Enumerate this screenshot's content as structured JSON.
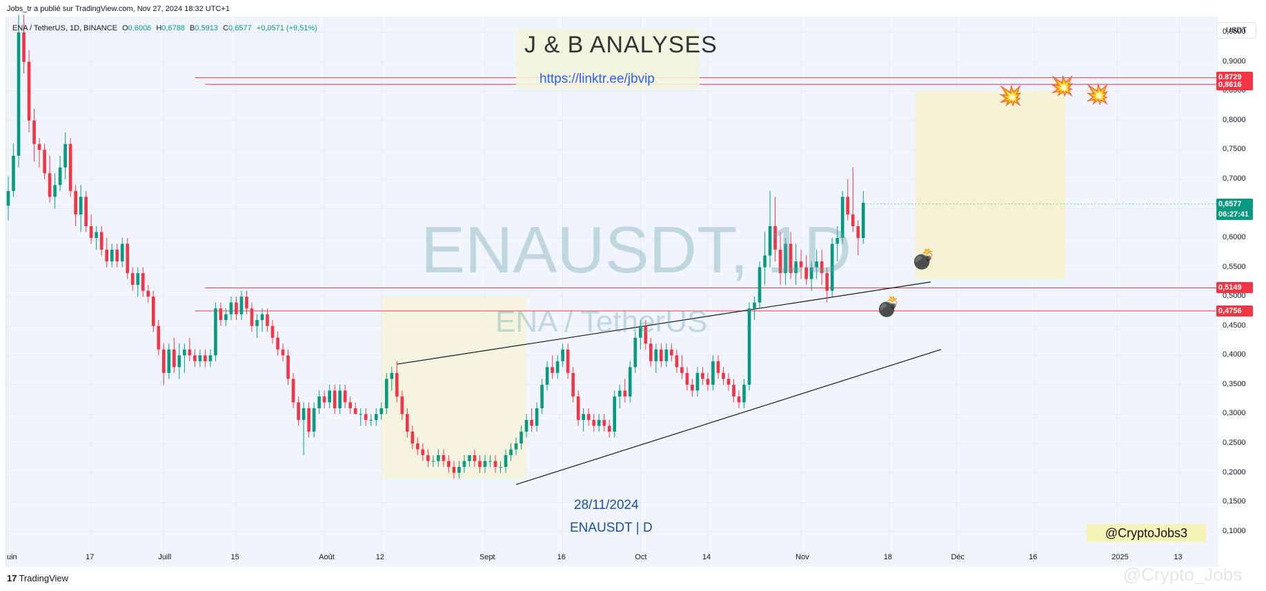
{
  "header": {
    "credit": "Jobs_tr a publié sur TradingView.com, Nov 27, 2024 18:32 UTC+1"
  },
  "ohlc": {
    "symbol": "ENA / TetherUS, 1D, BINANCE",
    "o_label": "O",
    "o": "0,6006",
    "h_label": "H",
    "h": "0,6788",
    "l_label": "B",
    "l": "0,5913",
    "c_label": "C",
    "c": "0,6577",
    "change": "+0,0571 (+9,51%)"
  },
  "watermark": {
    "main": "ENAUSDT, 1D",
    "sub": "ENA / TetherUS"
  },
  "annotations": {
    "title": "J & B ANALYSES",
    "link": "https://linktr.ee/jbvip",
    "date": "28/11/2024",
    "pair": "ENAUSDT | D",
    "handle": "@CryptoJobs3"
  },
  "price_axis": {
    "unit_button": "USDT",
    "ticks": [
      "0,9500",
      "0,9000",
      "0,8500",
      "0,8000",
      "0,7500",
      "0,7000",
      "0,6500",
      "0,6000",
      "0,5500",
      "0,5000",
      "0,4500",
      "0,4000",
      "0,3500",
      "0,3000",
      "0,2500",
      "0,2000",
      "0,1500",
      "0,1000"
    ],
    "labels": [
      {
        "text": "0,8729",
        "color": "#f23645"
      },
      {
        "text": "0,8616",
        "color": "#f23645"
      },
      {
        "text": "0,5149",
        "color": "#f23645"
      },
      {
        "text": "0,4756",
        "color": "#f23645"
      },
      {
        "text": "0,6577",
        "color": "#089981"
      },
      {
        "text": "06:27:41",
        "color": "#089981"
      }
    ]
  },
  "time_axis": [
    "uin",
    "17",
    "Juill",
    "15",
    "Août",
    "12",
    "Sept",
    "16",
    "Oct",
    "14",
    "Nov",
    "18",
    "Déc",
    "16",
    "2025",
    "13"
  ],
  "footer": {
    "logo": "TradingView",
    "logo_mark": "17",
    "watermark": "@Crypto_Jobs"
  },
  "icons": {
    "explosion": "explosion-icon",
    "bomb": "bomb-icon"
  },
  "colors": {
    "up": "#089981",
    "down": "#f23645",
    "hline": "#f23645",
    "bg": "#f1f5ff",
    "zone": "#f6f3c8"
  },
  "chart_data": {
    "type": "candlestick",
    "title": "ENAUSDT, 1D",
    "xlabel": "",
    "ylabel": "",
    "ylim": [
      0.075,
      0.97
    ],
    "grid": true,
    "start_date": "2024-06-01",
    "end_date": "2025-01-20",
    "hlines": [
      0.8729,
      0.8616,
      0.5149,
      0.4756
    ],
    "last": 0.6577,
    "candles": [
      [
        0.655,
        0.705,
        0.63,
        0.68
      ],
      [
        0.68,
        0.76,
        0.67,
        0.74
      ],
      [
        0.74,
        0.98,
        0.72,
        0.95
      ],
      [
        0.95,
        0.98,
        0.88,
        0.9
      ],
      [
        0.9,
        0.92,
        0.78,
        0.8
      ],
      [
        0.8,
        0.82,
        0.73,
        0.76
      ],
      [
        0.76,
        0.77,
        0.72,
        0.75
      ],
      [
        0.75,
        0.76,
        0.7,
        0.71
      ],
      [
        0.71,
        0.74,
        0.66,
        0.67
      ],
      [
        0.67,
        0.71,
        0.65,
        0.69
      ],
      [
        0.69,
        0.74,
        0.68,
        0.72
      ],
      [
        0.72,
        0.78,
        0.7,
        0.76
      ],
      [
        0.76,
        0.77,
        0.67,
        0.68
      ],
      [
        0.68,
        0.69,
        0.62,
        0.64
      ],
      [
        0.64,
        0.69,
        0.61,
        0.67
      ],
      [
        0.67,
        0.68,
        0.61,
        0.62
      ],
      [
        0.62,
        0.64,
        0.59,
        0.6
      ],
      [
        0.6,
        0.62,
        0.58,
        0.61
      ],
      [
        0.61,
        0.62,
        0.57,
        0.58
      ],
      [
        0.58,
        0.6,
        0.55,
        0.56
      ],
      [
        0.56,
        0.59,
        0.55,
        0.58
      ],
      [
        0.58,
        0.59,
        0.55,
        0.56
      ],
      [
        0.56,
        0.6,
        0.55,
        0.59
      ],
      [
        0.59,
        0.6,
        0.53,
        0.54
      ],
      [
        0.54,
        0.55,
        0.51,
        0.52
      ],
      [
        0.52,
        0.55,
        0.5,
        0.54
      ],
      [
        0.54,
        0.55,
        0.5,
        0.51
      ],
      [
        0.51,
        0.52,
        0.49,
        0.5
      ],
      [
        0.5,
        0.51,
        0.44,
        0.45
      ],
      [
        0.45,
        0.46,
        0.4,
        0.41
      ],
      [
        0.41,
        0.42,
        0.35,
        0.37
      ],
      [
        0.37,
        0.42,
        0.36,
        0.41
      ],
      [
        0.41,
        0.43,
        0.37,
        0.38
      ],
      [
        0.38,
        0.42,
        0.36,
        0.4
      ],
      [
        0.4,
        0.42,
        0.37,
        0.41
      ],
      [
        0.41,
        0.43,
        0.39,
        0.4
      ],
      [
        0.4,
        0.41,
        0.38,
        0.39
      ],
      [
        0.39,
        0.41,
        0.38,
        0.4
      ],
      [
        0.4,
        0.41,
        0.38,
        0.39
      ],
      [
        0.39,
        0.41,
        0.38,
        0.4
      ],
      [
        0.4,
        0.49,
        0.39,
        0.48
      ],
      [
        0.48,
        0.49,
        0.45,
        0.46
      ],
      [
        0.46,
        0.48,
        0.45,
        0.47
      ],
      [
        0.47,
        0.5,
        0.46,
        0.49
      ],
      [
        0.49,
        0.5,
        0.46,
        0.47
      ],
      [
        0.47,
        0.51,
        0.46,
        0.5
      ],
      [
        0.5,
        0.51,
        0.47,
        0.48
      ],
      [
        0.48,
        0.49,
        0.44,
        0.45
      ],
      [
        0.45,
        0.47,
        0.43,
        0.46
      ],
      [
        0.46,
        0.48,
        0.44,
        0.47
      ],
      [
        0.47,
        0.48,
        0.44,
        0.45
      ],
      [
        0.45,
        0.46,
        0.42,
        0.43
      ],
      [
        0.43,
        0.44,
        0.4,
        0.41
      ],
      [
        0.41,
        0.42,
        0.39,
        0.4
      ],
      [
        0.4,
        0.41,
        0.35,
        0.36
      ],
      [
        0.36,
        0.37,
        0.31,
        0.32
      ],
      [
        0.32,
        0.33,
        0.28,
        0.29
      ],
      [
        0.29,
        0.32,
        0.23,
        0.31
      ],
      [
        0.31,
        0.32,
        0.26,
        0.27
      ],
      [
        0.27,
        0.32,
        0.26,
        0.31
      ],
      [
        0.31,
        0.34,
        0.3,
        0.33
      ],
      [
        0.33,
        0.34,
        0.31,
        0.32
      ],
      [
        0.32,
        0.35,
        0.31,
        0.34
      ],
      [
        0.34,
        0.35,
        0.3,
        0.31
      ],
      [
        0.31,
        0.35,
        0.3,
        0.34
      ],
      [
        0.34,
        0.35,
        0.31,
        0.32
      ],
      [
        0.32,
        0.33,
        0.3,
        0.31
      ],
      [
        0.31,
        0.32,
        0.3,
        0.3
      ],
      [
        0.3,
        0.31,
        0.28,
        0.3
      ],
      [
        0.3,
        0.31,
        0.28,
        0.29
      ],
      [
        0.29,
        0.3,
        0.28,
        0.29
      ],
      [
        0.29,
        0.31,
        0.28,
        0.3
      ],
      [
        0.3,
        0.32,
        0.29,
        0.31
      ],
      [
        0.31,
        0.37,
        0.3,
        0.36
      ],
      [
        0.36,
        0.38,
        0.34,
        0.37
      ],
      [
        0.37,
        0.39,
        0.32,
        0.33
      ],
      [
        0.33,
        0.34,
        0.29,
        0.3
      ],
      [
        0.3,
        0.31,
        0.26,
        0.27
      ],
      [
        0.27,
        0.28,
        0.24,
        0.25
      ],
      [
        0.25,
        0.26,
        0.23,
        0.24
      ],
      [
        0.24,
        0.25,
        0.22,
        0.23
      ],
      [
        0.23,
        0.24,
        0.21,
        0.22
      ],
      [
        0.22,
        0.23,
        0.21,
        0.22
      ],
      [
        0.22,
        0.24,
        0.21,
        0.23
      ],
      [
        0.23,
        0.24,
        0.21,
        0.22
      ],
      [
        0.22,
        0.23,
        0.2,
        0.21
      ],
      [
        0.21,
        0.22,
        0.19,
        0.2
      ],
      [
        0.2,
        0.22,
        0.19,
        0.21
      ],
      [
        0.21,
        0.23,
        0.2,
        0.22
      ],
      [
        0.22,
        0.23,
        0.21,
        0.23
      ],
      [
        0.23,
        0.24,
        0.21,
        0.22
      ],
      [
        0.22,
        0.23,
        0.2,
        0.21
      ],
      [
        0.21,
        0.23,
        0.2,
        0.22
      ],
      [
        0.22,
        0.23,
        0.21,
        0.22
      ],
      [
        0.22,
        0.23,
        0.2,
        0.21
      ],
      [
        0.21,
        0.22,
        0.2,
        0.21
      ],
      [
        0.21,
        0.24,
        0.2,
        0.23
      ],
      [
        0.23,
        0.25,
        0.22,
        0.24
      ],
      [
        0.24,
        0.26,
        0.23,
        0.25
      ],
      [
        0.25,
        0.28,
        0.24,
        0.27
      ],
      [
        0.27,
        0.3,
        0.26,
        0.29
      ],
      [
        0.29,
        0.31,
        0.27,
        0.28
      ],
      [
        0.28,
        0.32,
        0.27,
        0.31
      ],
      [
        0.31,
        0.36,
        0.3,
        0.35
      ],
      [
        0.35,
        0.39,
        0.34,
        0.38
      ],
      [
        0.38,
        0.4,
        0.36,
        0.37
      ],
      [
        0.37,
        0.4,
        0.36,
        0.39
      ],
      [
        0.39,
        0.42,
        0.38,
        0.41
      ],
      [
        0.41,
        0.42,
        0.36,
        0.37
      ],
      [
        0.37,
        0.38,
        0.32,
        0.33
      ],
      [
        0.33,
        0.34,
        0.28,
        0.29
      ],
      [
        0.29,
        0.31,
        0.27,
        0.3
      ],
      [
        0.3,
        0.31,
        0.28,
        0.29
      ],
      [
        0.29,
        0.3,
        0.27,
        0.28
      ],
      [
        0.28,
        0.3,
        0.27,
        0.29
      ],
      [
        0.29,
        0.3,
        0.27,
        0.28
      ],
      [
        0.28,
        0.29,
        0.26,
        0.27
      ],
      [
        0.27,
        0.34,
        0.26,
        0.33
      ],
      [
        0.33,
        0.35,
        0.31,
        0.34
      ],
      [
        0.34,
        0.36,
        0.32,
        0.33
      ],
      [
        0.33,
        0.39,
        0.32,
        0.38
      ],
      [
        0.38,
        0.44,
        0.37,
        0.43
      ],
      [
        0.43,
        0.46,
        0.41,
        0.45
      ],
      [
        0.45,
        0.46,
        0.41,
        0.42
      ],
      [
        0.42,
        0.43,
        0.38,
        0.39
      ],
      [
        0.39,
        0.42,
        0.37,
        0.41
      ],
      [
        0.41,
        0.42,
        0.38,
        0.39
      ],
      [
        0.39,
        0.42,
        0.38,
        0.41
      ],
      [
        0.41,
        0.42,
        0.39,
        0.4
      ],
      [
        0.4,
        0.41,
        0.37,
        0.38
      ],
      [
        0.38,
        0.4,
        0.36,
        0.37
      ],
      [
        0.37,
        0.38,
        0.34,
        0.35
      ],
      [
        0.35,
        0.36,
        0.33,
        0.34
      ],
      [
        0.34,
        0.38,
        0.33,
        0.37
      ],
      [
        0.37,
        0.38,
        0.35,
        0.36
      ],
      [
        0.36,
        0.37,
        0.34,
        0.35
      ],
      [
        0.35,
        0.4,
        0.34,
        0.39
      ],
      [
        0.39,
        0.4,
        0.36,
        0.37
      ],
      [
        0.37,
        0.38,
        0.35,
        0.36
      ],
      [
        0.36,
        0.37,
        0.34,
        0.35
      ],
      [
        0.35,
        0.36,
        0.32,
        0.33
      ],
      [
        0.33,
        0.34,
        0.31,
        0.32
      ],
      [
        0.32,
        0.36,
        0.31,
        0.35
      ],
      [
        0.35,
        0.49,
        0.34,
        0.48
      ],
      [
        0.48,
        0.5,
        0.46,
        0.49
      ],
      [
        0.49,
        0.56,
        0.48,
        0.55
      ],
      [
        0.55,
        0.61,
        0.52,
        0.57
      ],
      [
        0.57,
        0.68,
        0.55,
        0.62
      ],
      [
        0.62,
        0.67,
        0.56,
        0.58
      ],
      [
        0.58,
        0.61,
        0.52,
        0.54
      ],
      [
        0.54,
        0.6,
        0.52,
        0.59
      ],
      [
        0.59,
        0.61,
        0.53,
        0.54
      ],
      [
        0.54,
        0.59,
        0.52,
        0.56
      ],
      [
        0.56,
        0.58,
        0.53,
        0.55
      ],
      [
        0.55,
        0.57,
        0.52,
        0.53
      ],
      [
        0.53,
        0.56,
        0.51,
        0.55
      ],
      [
        0.55,
        0.58,
        0.53,
        0.56
      ],
      [
        0.56,
        0.58,
        0.52,
        0.54
      ],
      [
        0.54,
        0.55,
        0.49,
        0.51
      ],
      [
        0.51,
        0.6,
        0.5,
        0.59
      ],
      [
        0.59,
        0.62,
        0.56,
        0.6
      ],
      [
        0.6,
        0.68,
        0.59,
        0.67
      ],
      [
        0.67,
        0.7,
        0.63,
        0.64
      ],
      [
        0.64,
        0.72,
        0.61,
        0.62
      ],
      [
        0.62,
        0.63,
        0.57,
        0.6
      ],
      [
        0.6,
        0.68,
        0.59,
        0.66
      ]
    ]
  }
}
